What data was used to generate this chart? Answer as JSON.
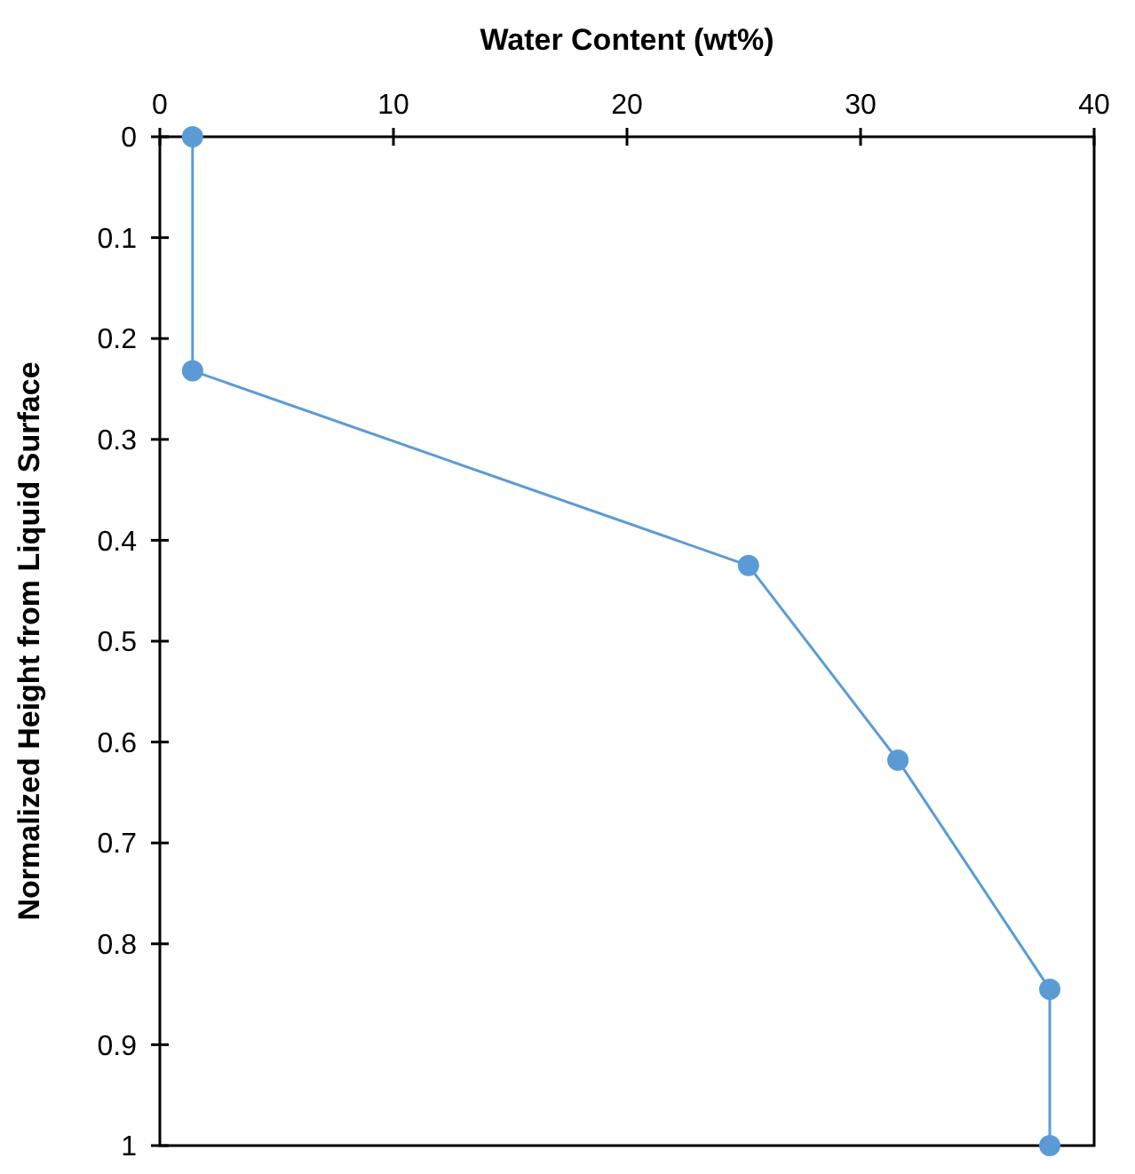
{
  "chart_data": {
    "type": "line",
    "xlabel": "Water Content (wt%)",
    "ylabel": "Normalized Height from Liquid Surface",
    "x": [
      1.4,
      1.4,
      25.2,
      31.6,
      38.1,
      38.1
    ],
    "values": [
      0,
      0.232,
      0.425,
      0.618,
      0.845,
      1
    ],
    "color": "#5b9bd5",
    "xlim": [
      0,
      40
    ],
    "xticks": [
      0,
      10,
      20,
      30,
      40
    ],
    "ylim": [
      1,
      0
    ],
    "yticks": [
      0,
      0.1,
      0.2,
      0.3,
      0.4,
      0.5,
      0.6,
      0.7,
      0.8,
      0.9,
      1
    ],
    "marker": "circle"
  }
}
